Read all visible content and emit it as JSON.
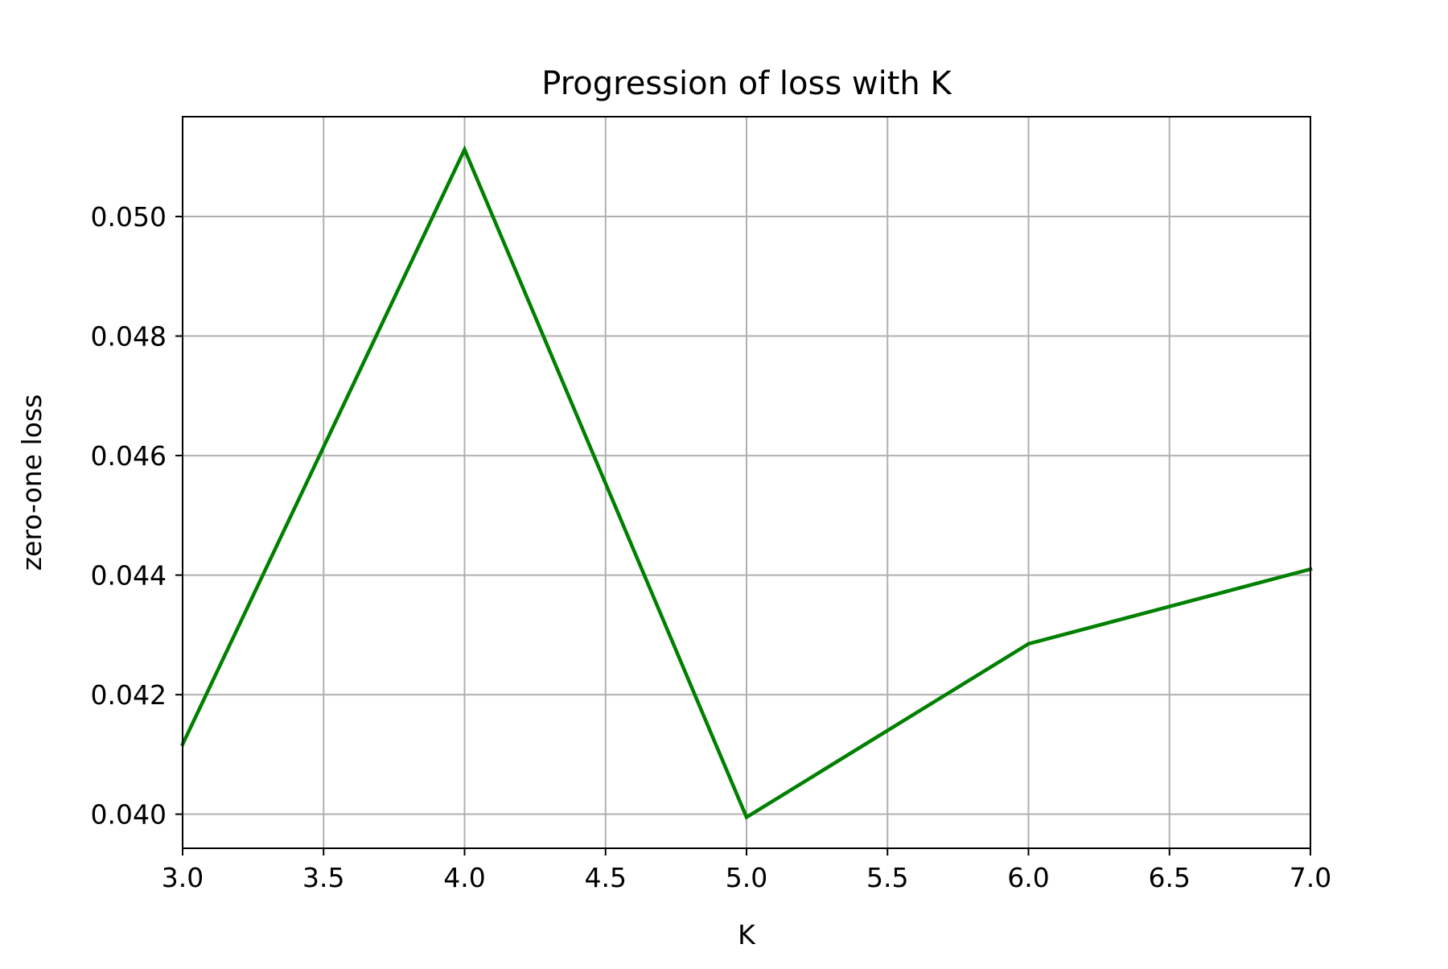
{
  "chart_data": {
    "type": "line",
    "title": "Progression of loss with K",
    "xlabel": "K",
    "ylabel": "zero-one loss",
    "xlim": [
      3.0,
      7.0
    ],
    "ylim": [
      0.03943,
      0.05167
    ],
    "xticks": [
      3.0,
      3.5,
      4.0,
      4.5,
      5.0,
      5.5,
      6.0,
      6.5,
      7.0
    ],
    "xtick_labels": [
      "3.0",
      "3.5",
      "4.0",
      "4.5",
      "5.0",
      "5.5",
      "6.0",
      "6.5",
      "7.0"
    ],
    "yticks": [
      0.04,
      0.042,
      0.044,
      0.046,
      0.048,
      0.05
    ],
    "ytick_labels": [
      "0.040",
      "0.042",
      "0.044",
      "0.046",
      "0.048",
      "0.050"
    ],
    "grid": true,
    "series": [
      {
        "color": "#008000",
        "x": [
          3,
          4,
          5,
          6,
          7
        ],
        "y": [
          0.04117,
          0.05112,
          0.03995,
          0.04285,
          0.0441
        ]
      }
    ]
  }
}
